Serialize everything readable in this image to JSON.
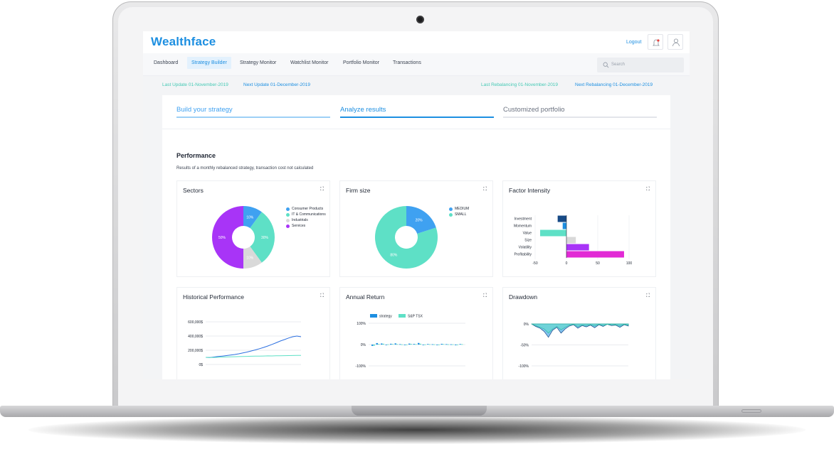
{
  "app": {
    "brand": "Wealthface",
    "logout": "Logout"
  },
  "nav": {
    "items": [
      "Dashboard",
      "Strategy Builder",
      "Strategy Monitor",
      "Watchlist Monitor",
      "Portfolio Monitor",
      "Transactions"
    ],
    "active": "Strategy Builder",
    "search_placeholder": "Search"
  },
  "info": {
    "last_update": "Last Update 01-November-2019",
    "next_update": "Next Update 01-December-2019",
    "last_rebalancing": "Last Rebalancing 01-November-2019",
    "next_rebalancing": "Next Rebalancing 01-December-2019"
  },
  "steps": [
    "Build your strategy",
    "Analyze results",
    "Customized portfolio"
  ],
  "performance": {
    "title": "Performance",
    "subtitle": "Results of a monthly rebalanced strategy, transaction cost not calculated"
  },
  "panels": {
    "sectors": "Sectors",
    "firm_size": "Firm size",
    "factor_intensity": "Factor Intensity",
    "historical": "Historical Performance",
    "annual": "Annual Return",
    "drawdown": "Drawdown",
    "expand_icon": "expand-icon"
  },
  "colors": {
    "blue": "#1d8fe1",
    "teal": "#5ee0c6",
    "purple": "#a834f7",
    "grey": "#d9d9d9",
    "magenta": "#e22ad5",
    "navy": "#174a86"
  },
  "chart_data": [
    {
      "type": "pie",
      "title": "Sectors",
      "labels": [
        "Consumer Products",
        "IT & Communications",
        "Industrials",
        "Services"
      ],
      "values": [
        10,
        30,
        10,
        50
      ],
      "slice_labels": [
        "10%",
        "30%",
        "10%",
        "50%"
      ],
      "colors": [
        "#3fa1f1",
        "#5ee0c6",
        "#d9d9d9",
        "#a834f7"
      ],
      "legend": "right"
    },
    {
      "type": "pie",
      "title": "Firm size",
      "labels": [
        "MEDIUM",
        "SMALL"
      ],
      "values": [
        20,
        80
      ],
      "slice_labels": [
        "20%",
        "80%"
      ],
      "colors": [
        "#3fa1f1",
        "#5ee0c6"
      ],
      "legend": "right"
    },
    {
      "type": "bar",
      "orientation": "horizontal",
      "title": "Factor Intensity",
      "categories": [
        "Investment",
        "Momentum",
        "Value",
        "Size",
        "Volatility",
        "Profitability"
      ],
      "values": [
        -14,
        -6,
        -42,
        15,
        36,
        92
      ],
      "colors": [
        "#174a86",
        "#1d8fe1",
        "#5ee0c6",
        "#d9d9d9",
        "#a834f7",
        "#e22ad5"
      ],
      "xticks": [
        "-50",
        "0",
        "50",
        "100"
      ],
      "xlim": [
        -50,
        100
      ]
    },
    {
      "type": "line",
      "title": "Historical Performance",
      "yticks": [
        "600,000$",
        "400,000$",
        "200,000$",
        "0$"
      ],
      "ylim": [
        0,
        600000
      ],
      "series": [
        {
          "values": [
            100000,
            98000,
            105000,
            112000,
            118000,
            125000,
            132000,
            140000,
            150000,
            162000,
            175000,
            190000,
            205000,
            222000,
            240000,
            260000,
            282000,
            305000,
            330000,
            350000,
            372000,
            390000,
            400000,
            390000
          ]
        },
        {
          "values": [
            100000,
            97000,
            99000,
            101000,
            104000,
            106000,
            107000,
            109000,
            111000,
            113000,
            114000,
            116000,
            117000,
            118000,
            119000,
            121000,
            120000,
            122000,
            123000,
            124000,
            125000,
            126000,
            127000,
            128000
          ]
        }
      ]
    },
    {
      "type": "bar",
      "title": "Annual Return",
      "yticks": [
        "100%",
        "0%",
        "-100%"
      ],
      "ylim": [
        -100,
        100
      ],
      "series": [
        {
          "name": "strategy",
          "values": [
            -25,
            28,
            20,
            -8,
            15,
            22,
            8,
            -10,
            18,
            12,
            30,
            -5,
            10,
            6,
            -3,
            14,
            8,
            5,
            -12,
            10
          ]
        },
        {
          "name": "S&P TSX",
          "values": [
            -20,
            12,
            15,
            5,
            10,
            8,
            3,
            -6,
            12,
            8,
            15,
            2,
            6,
            4,
            1,
            9,
            5,
            4,
            -8,
            7
          ]
        }
      ]
    },
    {
      "type": "area",
      "title": "Drawdown",
      "yticks": [
        "0%",
        "-50%",
        "-100%"
      ],
      "ylim": [
        -100,
        5
      ],
      "series": [
        {
          "values": [
            0,
            -6,
            -10,
            -18,
            -32,
            -15,
            -8,
            -22,
            -12,
            -5,
            -2,
            -10,
            -4,
            -7,
            -3,
            -9,
            -2,
            -6,
            -1,
            -4,
            -3,
            -8,
            -2,
            -5
          ]
        },
        {
          "values": [
            0,
            -4,
            -8,
            -12,
            -22,
            -12,
            -6,
            -14,
            -8,
            -3,
            -1,
            -6,
            -3,
            -4,
            -2,
            -5,
            -1,
            -4,
            -1,
            -2,
            -2,
            -5,
            -1,
            -3
          ]
        }
      ]
    }
  ]
}
